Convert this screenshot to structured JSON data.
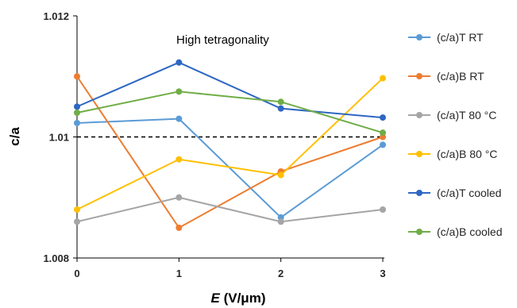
{
  "chart_data": {
    "type": "line",
    "ylabel": "c/a",
    "xlabel_italic": "E",
    "xlabel_units": " (V/μm)",
    "annotation": "High tetragonality",
    "x": [
      0,
      1.05,
      2.1,
      3.15
    ],
    "xticks": [
      "0",
      "1",
      "2",
      "3"
    ],
    "yticks": [
      "1.008",
      "1.01",
      "1.012"
    ],
    "ytick_values": [
      1.008,
      1.01,
      1.012
    ],
    "ylim": [
      1.008,
      1.012
    ],
    "xlim": [
      0,
      3.15
    ],
    "reference_line": {
      "value": 1.01,
      "style": "dashed",
      "color": "#000000"
    },
    "legend_position": "right",
    "series": [
      {
        "name": "(c/a)T RT",
        "color": "#5B9BD5",
        "values": [
          1.01023,
          1.0103,
          1.00867,
          1.00987
        ]
      },
      {
        "name": "(c/a)B RT",
        "color": "#ED7D31",
        "values": [
          1.011,
          1.0085,
          1.00943,
          1.01
        ]
      },
      {
        "name": "(c/a)T 80 °C",
        "color": "#A5A5A5",
        "values": [
          1.0086,
          1.009,
          1.0086,
          1.0088
        ]
      },
      {
        "name": "(c/a)B 80 °C",
        "color": "#FFC000",
        "values": [
          1.0088,
          1.00963,
          1.00937,
          1.01097
        ]
      },
      {
        "name": "(c/a)T cooled",
        "color": "#2E67C3",
        "values": [
          1.0105,
          1.01123,
          1.01047,
          1.01032
        ]
      },
      {
        "name": "(c/a)B cooled",
        "color": "#70AD47",
        "values": [
          1.0104,
          1.01075,
          1.01058,
          1.01007
        ]
      }
    ]
  }
}
